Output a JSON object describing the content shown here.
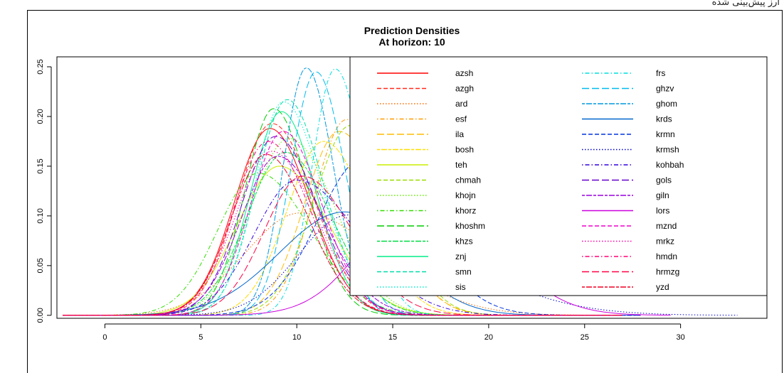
{
  "top_caption": "ارز پیش‌بینی شده",
  "chart_data": {
    "type": "line",
    "title": "Prediction Densities",
    "subtitle": "At horizon: 10",
    "xlabel": "",
    "ylabel": "",
    "xlim": [
      -2.5,
      34.5
    ],
    "ylim": [
      -0.003,
      0.26
    ],
    "x_ticks": [
      0,
      5,
      10,
      15,
      20,
      25,
      30
    ],
    "y_ticks": [
      0.0,
      0.05,
      0.1,
      0.15,
      0.2,
      0.25
    ],
    "y_tick_labels": [
      "0.00",
      "0.05",
      "0.10",
      "0.15",
      "0.20",
      "0.25"
    ],
    "x_tick_labels": [
      "0",
      "5",
      "10",
      "15",
      "20",
      "25",
      "30"
    ],
    "grid": false,
    "legend_placement": "top-right",
    "series": [
      {
        "name": "azsh",
        "color": "#ff0000",
        "dash": "solid",
        "mean": 8.6,
        "peak": 0.188,
        "sd_left": 1.85,
        "sd_right": 2.1,
        "start": -2.2,
        "end": 27.0
      },
      {
        "name": "azgh",
        "color": "#ff2a1a",
        "dash": "dashed",
        "mean": 8.7,
        "peak": 0.193,
        "sd_left": 1.8,
        "sd_right": 2.2,
        "start": -2.2,
        "end": 27.0
      },
      {
        "name": "ard",
        "color": "#ff6a00",
        "dash": "dotted",
        "mean": 10.2,
        "peak": 0.103,
        "sd_left": 2.9,
        "sd_right": 4.2,
        "start": -2.2,
        "end": 28.0
      },
      {
        "name": "esf",
        "color": "#ff9900",
        "dash": "dotdash",
        "mean": 12.6,
        "peak": 0.197,
        "sd_left": 1.7,
        "sd_right": 2.2,
        "start": -2.2,
        "end": 27.0
      },
      {
        "name": "ila",
        "color": "#ffbb00",
        "dash": "longdash",
        "mean": 12.2,
        "peak": 0.185,
        "sd_left": 1.8,
        "sd_right": 2.4,
        "start": -2.2,
        "end": 27.0
      },
      {
        "name": "bosh",
        "color": "#ffdd00",
        "dash": "twodash",
        "mean": 11.4,
        "peak": 0.175,
        "sd_left": 1.9,
        "sd_right": 2.3,
        "start": -2.2,
        "end": 27.0
      },
      {
        "name": "teh",
        "color": "#ccee00",
        "dash": "solid",
        "mean": 9.1,
        "peak": 0.15,
        "sd_left": 2.2,
        "sd_right": 2.6,
        "start": -2.2,
        "end": 27.0
      },
      {
        "name": "chmah",
        "color": "#99dd00",
        "dash": "dashed",
        "mean": 12.8,
        "peak": 0.191,
        "sd_left": 1.9,
        "sd_right": 2.2,
        "start": -2.2,
        "end": 27.0
      },
      {
        "name": "khojn",
        "color": "#66ee00",
        "dash": "dotted",
        "mean": 9.6,
        "peak": 0.178,
        "sd_left": 2.0,
        "sd_right": 2.4,
        "start": -2.2,
        "end": 27.0
      },
      {
        "name": "khorz",
        "color": "#33dd00",
        "dash": "dotdash",
        "mean": 8.0,
        "peak": 0.143,
        "sd_left": 2.1,
        "sd_right": 2.7,
        "start": -2.2,
        "end": 27.0
      },
      {
        "name": "khoshm",
        "color": "#00cc00",
        "dash": "longdash",
        "mean": 8.8,
        "peak": 0.208,
        "sd_left": 1.5,
        "sd_right": 1.8,
        "start": -2.2,
        "end": 27.0
      },
      {
        "name": "khzs",
        "color": "#00dd44",
        "dash": "twodash",
        "mean": 9.4,
        "peak": 0.164,
        "sd_left": 2.0,
        "sd_right": 2.4,
        "start": -2.2,
        "end": 27.0
      },
      {
        "name": "znj",
        "color": "#00ee88",
        "dash": "solid",
        "mean": 9.2,
        "peak": 0.205,
        "sd_left": 1.6,
        "sd_right": 1.8,
        "start": -2.2,
        "end": 27.0
      },
      {
        "name": "smn",
        "color": "#00ddaa",
        "dash": "dashed",
        "mean": 9.5,
        "peak": 0.217,
        "sd_left": 1.6,
        "sd_right": 1.9,
        "start": -2.2,
        "end": 27.0
      },
      {
        "name": "sis",
        "color": "#00eecc",
        "dash": "dotted",
        "mean": 9.3,
        "peak": 0.215,
        "sd_left": 1.5,
        "sd_right": 2.0,
        "start": -2.2,
        "end": 27.0
      },
      {
        "name": "frs",
        "color": "#00dddd",
        "dash": "dotdash",
        "mean": 12.0,
        "peak": 0.248,
        "sd_left": 1.2,
        "sd_right": 1.5,
        "start": -2.2,
        "end": 27.0
      },
      {
        "name": "ghzv",
        "color": "#00bbee",
        "dash": "longdash",
        "mean": 11.0,
        "peak": 0.245,
        "sd_left": 1.3,
        "sd_right": 1.5,
        "start": -2.2,
        "end": 27.0
      },
      {
        "name": "ghom",
        "color": "#0099dd",
        "dash": "twodash",
        "mean": 10.5,
        "peak": 0.249,
        "sd_left": 1.2,
        "sd_right": 1.4,
        "start": -2.2,
        "end": 27.0
      },
      {
        "name": "krds",
        "color": "#0066cc",
        "dash": "solid",
        "mean": 12.5,
        "peak": 0.104,
        "sd_left": 3.4,
        "sd_right": 3.0,
        "start": -2.2,
        "end": 28.0
      },
      {
        "name": "krmn",
        "color": "#0033dd",
        "dash": "dashed",
        "mean": 13.5,
        "peak": 0.158,
        "sd_left": 2.4,
        "sd_right": 2.9,
        "start": -2.2,
        "end": 28.0
      },
      {
        "name": "krmsh",
        "color": "#0000cc",
        "dash": "dotted",
        "mean": 12.7,
        "peak": 0.101,
        "sd_left": 2.6,
        "sd_right": 5.5,
        "start": -2.2,
        "end": 33.0
      },
      {
        "name": "kohbah",
        "color": "#3300dd",
        "dash": "dotdash",
        "mean": 10.0,
        "peak": 0.136,
        "sd_left": 2.2,
        "sd_right": 3.2,
        "start": -2.2,
        "end": 28.0
      },
      {
        "name": "gols",
        "color": "#6600cc",
        "dash": "longdash",
        "mean": 8.9,
        "peak": 0.18,
        "sd_left": 1.8,
        "sd_right": 2.2,
        "start": -2.2,
        "end": 27.0
      },
      {
        "name": "giln",
        "color": "#9900dd",
        "dash": "twodash",
        "mean": 9.0,
        "peak": 0.16,
        "sd_left": 1.9,
        "sd_right": 2.4,
        "start": -2.2,
        "end": 27.0
      },
      {
        "name": "lors",
        "color": "#cc00dd",
        "dash": "solid",
        "mean": 16.8,
        "peak": 0.131,
        "sd_left": 3.0,
        "sd_right": 3.4,
        "start": -2.2,
        "end": 29.5
      },
      {
        "name": "mznd",
        "color": "#ee00cc",
        "dash": "dashed",
        "mean": 9.3,
        "peak": 0.185,
        "sd_left": 1.7,
        "sd_right": 2.0,
        "start": -2.2,
        "end": 27.0
      },
      {
        "name": "mrkz",
        "color": "#ff00aa",
        "dash": "dotted",
        "mean": 8.7,
        "peak": 0.165,
        "sd_left": 1.9,
        "sd_right": 2.3,
        "start": -2.2,
        "end": 27.0
      },
      {
        "name": "hmdn",
        "color": "#ff0077",
        "dash": "dotdash",
        "mean": 8.5,
        "peak": 0.175,
        "sd_left": 1.8,
        "sd_right": 2.2,
        "start": -2.2,
        "end": 27.0
      },
      {
        "name": "hrmzg",
        "color": "#ff0044",
        "dash": "longdash",
        "mean": 10.3,
        "peak": 0.14,
        "sd_left": 2.0,
        "sd_right": 2.6,
        "start": -2.2,
        "end": 27.0
      },
      {
        "name": "yzd",
        "color": "#ee0022",
        "dash": "twodash",
        "mean": 8.4,
        "peak": 0.162,
        "sd_left": 1.8,
        "sd_right": 2.2,
        "start": -2.2,
        "end": 27.0
      }
    ]
  }
}
